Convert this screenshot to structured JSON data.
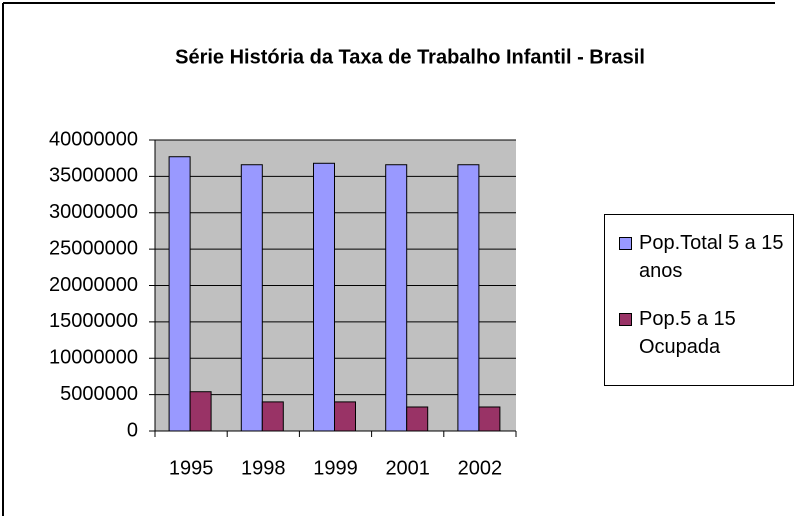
{
  "chart_data": {
    "type": "bar",
    "title": "Série História da Taxa de Trabalho Infantil - Brasil",
    "categories": [
      "1995",
      "1998",
      "1999",
      "2001",
      "2002"
    ],
    "series": [
      {
        "name": "Pop.Total 5 a 15 anos",
        "color": "#9999ff",
        "values": [
          37700000,
          36600000,
          36800000,
          36600000,
          36600000
        ]
      },
      {
        "name": "Pop.5 a 15 Ocupada",
        "color": "#993366",
        "values": [
          5400000,
          4000000,
          4000000,
          3300000,
          3300000
        ]
      }
    ],
    "ylim": [
      0,
      40000000
    ],
    "yticks": [
      0,
      5000000,
      10000000,
      15000000,
      20000000,
      25000000,
      30000000,
      35000000,
      40000000
    ],
    "grid": true,
    "legend": "right",
    "plot_background": "#c0c0c0"
  }
}
